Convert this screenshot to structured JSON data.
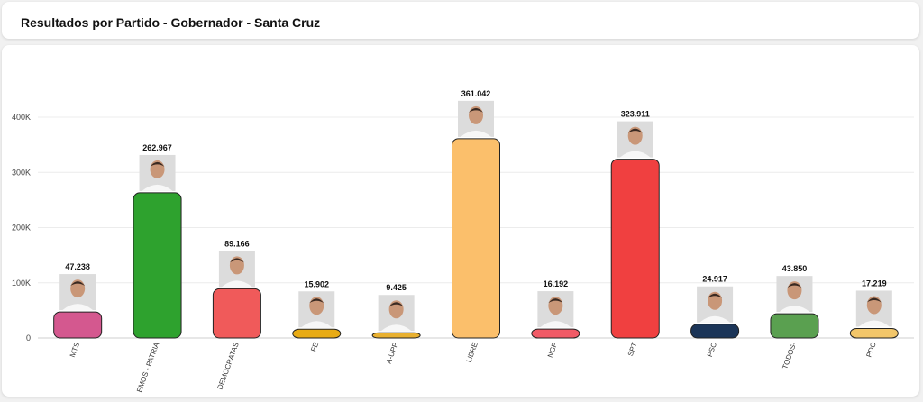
{
  "header": {
    "title": "Resultados por Partido - Gobernador - Santa Cruz"
  },
  "chart_data": {
    "type": "bar",
    "title": "Resultados por Partido - Gobernador - Santa Cruz",
    "xlabel": "",
    "ylabel": "",
    "ylim": [
      0,
      420000
    ],
    "yticks": [
      0,
      100000,
      200000,
      300000,
      400000
    ],
    "ytick_labels": [
      "0",
      "100K",
      "200K",
      "300K",
      "400K"
    ],
    "grid": true,
    "legend": "none",
    "categories": [
      "MTS",
      "EMOS - PATRIA",
      "DEMOCRATAS",
      "FE",
      "A-UPP",
      "LIBRE",
      "NGP",
      "SPT",
      "PSC",
      "TODOS-",
      "PDC"
    ],
    "values": [
      47238,
      262967,
      89166,
      15902,
      9425,
      361042,
      16192,
      323911,
      24917,
      43850,
      17219
    ],
    "value_labels": [
      "47.238",
      "262.967",
      "89.166",
      "15.902",
      "9.425",
      "361.042",
      "16.192",
      "323.911",
      "24.917",
      "43.850",
      "17.219"
    ],
    "colors": [
      "#d4588f",
      "#2ea22e",
      "#f05a5a",
      "#e8ab14",
      "#e8b030",
      "#fbbf6b",
      "#f05a66",
      "#f04040",
      "#1b3558",
      "#5aa050",
      "#f2c66a"
    ],
    "icon": "candidate-photo-icon"
  }
}
